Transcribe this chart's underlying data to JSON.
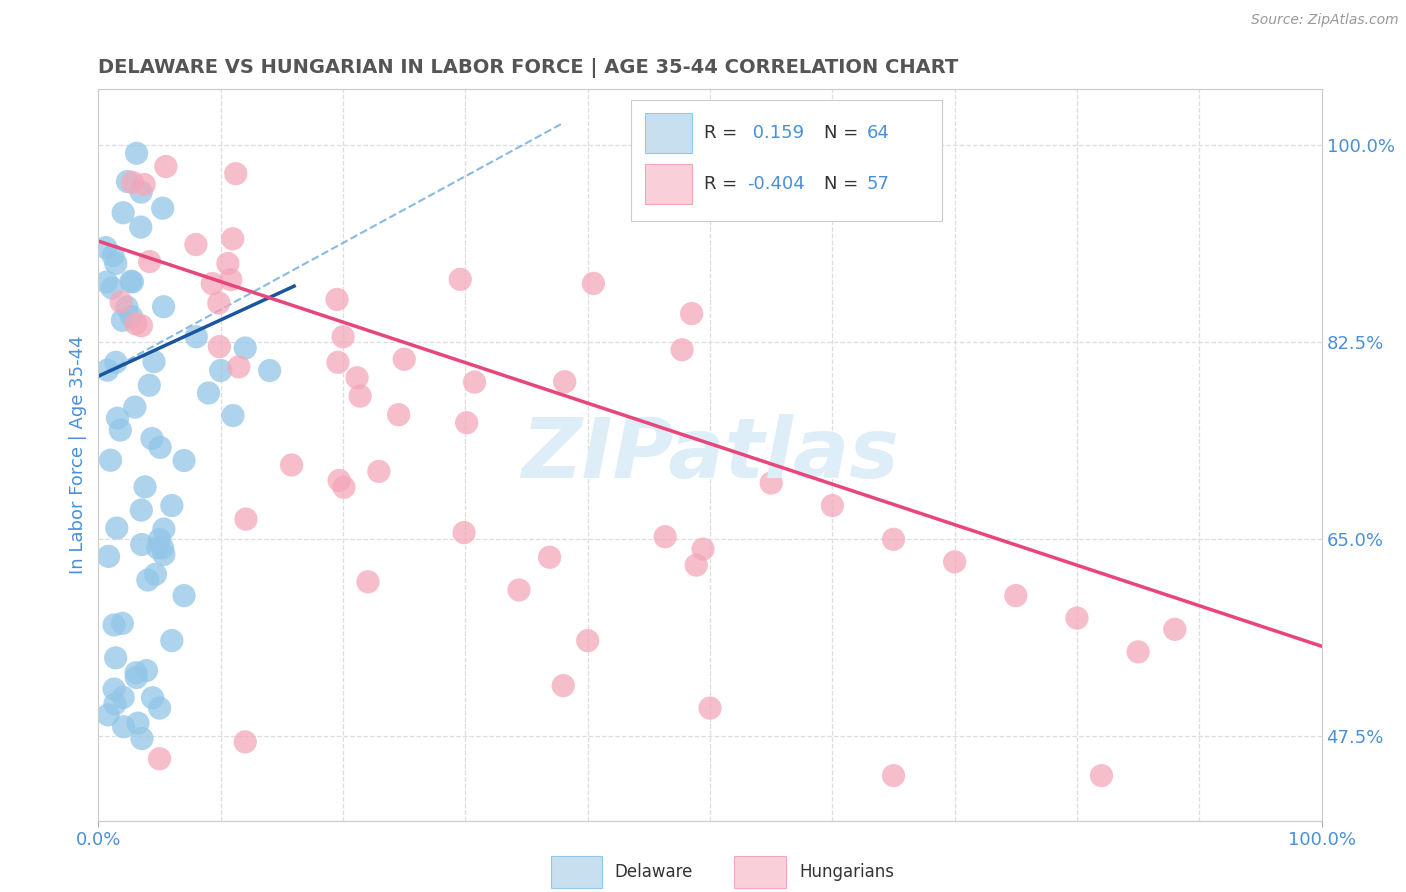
{
  "title": "DELAWARE VS HUNGARIAN IN LABOR FORCE | AGE 35-44 CORRELATION CHART",
  "source_text": "Source: ZipAtlas.com",
  "ylabel": "In Labor Force | Age 35-44",
  "xlim": [
    0.0,
    1.0
  ],
  "ylim": [
    0.4,
    1.05
  ],
  "right_yticks": [
    0.475,
    0.65,
    0.825,
    1.0
  ],
  "right_yticklabels": [
    "47.5%",
    "65.0%",
    "82.5%",
    "100.0%"
  ],
  "blue_color": "#93c6e8",
  "pink_color": "#f4a7b9",
  "trend_blue_color": "#1a56a0",
  "trend_pink_color": "#e8457a",
  "ref_line_color": "#7ab3e0",
  "axis_label_color": "#4a90d9",
  "watermark_color": "#ddeef8",
  "background_color": "#ffffff",
  "grid_color": "#dddddd",
  "legend_value_color": "#4a90d9",
  "blue_trend_x": [
    0.0,
    0.16
  ],
  "blue_trend_y": [
    0.795,
    0.875
  ],
  "pink_trend_x": [
    0.0,
    1.0
  ],
  "pink_trend_y": [
    0.915,
    0.555
  ],
  "ref_line_x": [
    0.0,
    0.38
  ],
  "ref_line_y": [
    0.795,
    1.02
  ]
}
